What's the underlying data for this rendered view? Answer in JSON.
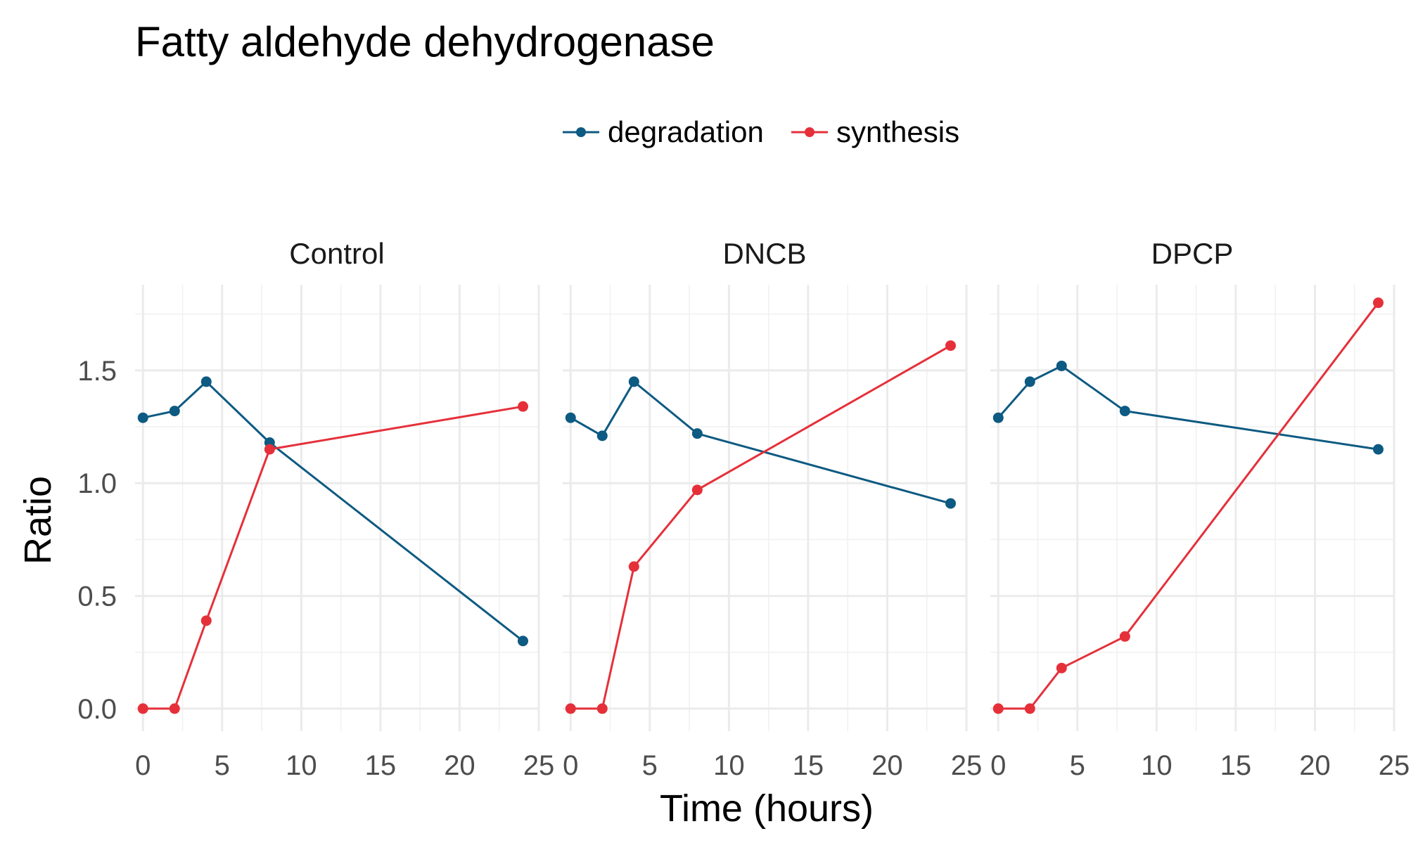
{
  "chart_data": {
    "type": "line",
    "title": "Fatty aldehyde dehydrogenase",
    "xlabel": "Time (hours)",
    "ylabel": "Ratio",
    "xlim": [
      -0.5,
      25
    ],
    "ylim": [
      -0.1,
      1.88
    ],
    "xticks": [
      0,
      5,
      10,
      15,
      20,
      25
    ],
    "xtick_labels": [
      "0",
      "5",
      "10",
      "15",
      "20",
      "25"
    ],
    "yticks": [
      0,
      0.5,
      1,
      1.5
    ],
    "ytick_labels": [
      "0.0",
      "0.5",
      "1.0",
      "1.5"
    ],
    "grid": true,
    "legend_position": "top",
    "series_names": [
      "degradation",
      "synthesis"
    ],
    "colors": {
      "degradation": "#0d5a82",
      "synthesis": "#e5303a"
    },
    "x": [
      0,
      2,
      4,
      8,
      24
    ],
    "facets": [
      {
        "name": "Control",
        "series": [
          {
            "name": "degradation",
            "values": [
              1.29,
              1.32,
              1.45,
              1.18,
              0.3
            ]
          },
          {
            "name": "synthesis",
            "values": [
              0.0,
              0.0,
              0.39,
              1.15,
              1.34
            ]
          }
        ]
      },
      {
        "name": "DNCB",
        "series": [
          {
            "name": "degradation",
            "values": [
              1.29,
              1.21,
              1.45,
              1.22,
              0.91
            ]
          },
          {
            "name": "synthesis",
            "values": [
              0.0,
              0.0,
              0.63,
              0.97,
              1.61
            ]
          }
        ]
      },
      {
        "name": "DPCP",
        "series": [
          {
            "name": "degradation",
            "values": [
              1.29,
              1.45,
              1.52,
              1.32,
              1.15
            ]
          },
          {
            "name": "synthesis",
            "values": [
              0.0,
              0.0,
              0.18,
              0.32,
              1.8
            ]
          }
        ]
      }
    ]
  }
}
